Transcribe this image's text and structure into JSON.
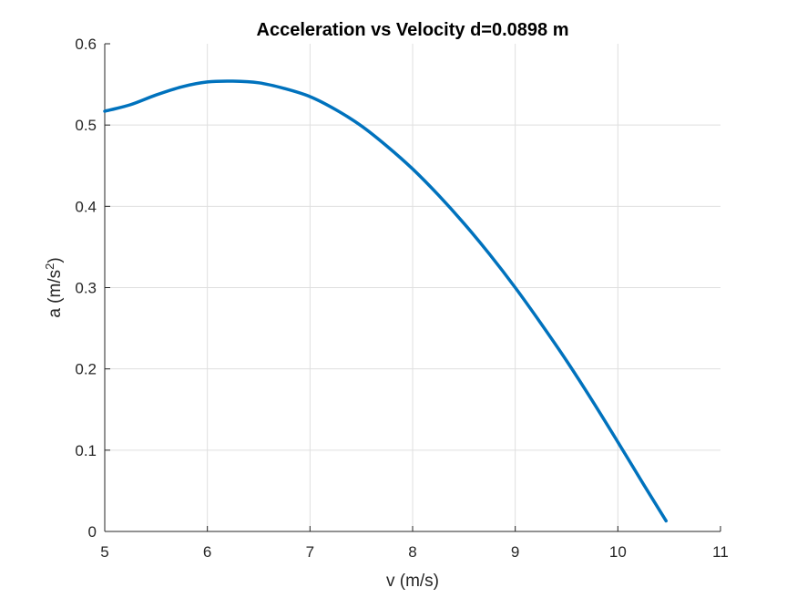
{
  "chart_data": {
    "type": "line",
    "title": "Acceleration vs Velocity d=0.0898 m",
    "xlabel": "v (m/s)",
    "ylabel_base": "a (m/s",
    "ylabel_sup": "2",
    "ylabel_close": ")",
    "xlim": [
      5,
      11
    ],
    "ylim": [
      0,
      0.6
    ],
    "xticks": [
      "5",
      "6",
      "7",
      "8",
      "9",
      "10",
      "11"
    ],
    "yticks": [
      "0",
      "0.1",
      "0.2",
      "0.3",
      "0.4",
      "0.5",
      "0.6"
    ],
    "grid": true,
    "line_color": "#0072BD",
    "series": [
      {
        "x": [
          5.0,
          5.25,
          5.5,
          5.75,
          6.0,
          6.25,
          6.5,
          6.75,
          7.0,
          7.25,
          7.5,
          7.75,
          8.0,
          8.25,
          8.5,
          8.75,
          9.0,
          9.25,
          9.5,
          9.75,
          10.0,
          10.25,
          10.47
        ],
        "y": [
          0.517,
          0.525,
          0.537,
          0.547,
          0.553,
          0.554,
          0.552,
          0.545,
          0.535,
          0.519,
          0.499,
          0.474,
          0.446,
          0.414,
          0.379,
          0.341,
          0.3,
          0.256,
          0.21,
          0.161,
          0.11,
          0.058,
          0.013
        ]
      }
    ]
  }
}
